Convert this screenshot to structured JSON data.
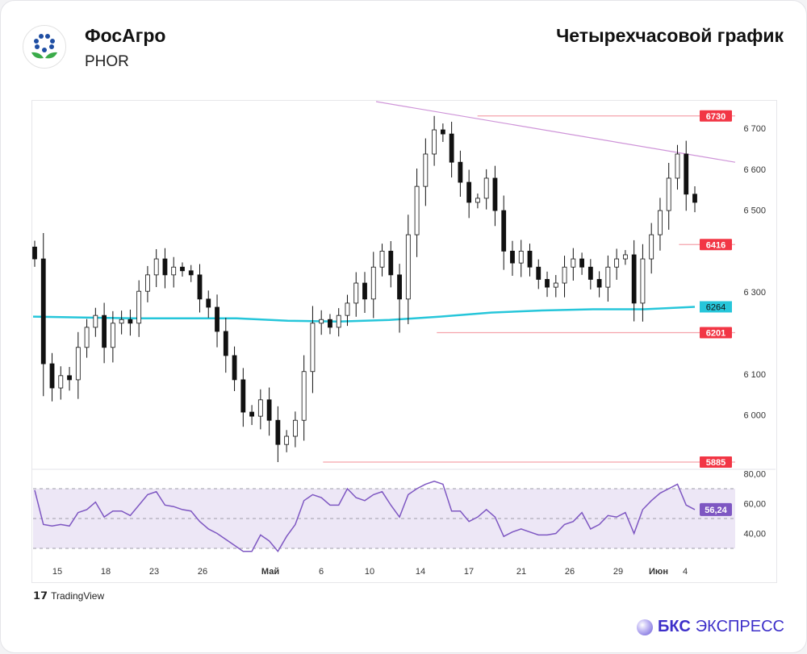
{
  "header": {
    "company": "ФосАгро",
    "ticker": "PHOR",
    "chart_title": "Четырехчасовой график"
  },
  "footer": {
    "tradingview": "TradingView",
    "brand_bold": "БКС",
    "brand_light": "ЭКСПРЕСС"
  },
  "colors": {
    "up": "#ffffff",
    "down": "#111111",
    "sma": "#26c6da",
    "level": "#f23645",
    "trend": "#ce93d8",
    "rsi": "#7e57c2",
    "rsi_band": "#ede7f6"
  },
  "chart_data": {
    "type": "candlestick",
    "title": "Четырехчасовой график",
    "ylim": [
      5850,
      6770
    ],
    "yticks": [
      6000,
      6100,
      6300,
      6500,
      6600,
      6700
    ],
    "ytick_labels": [
      "6 000",
      "6 100",
      "6 300",
      "6 500",
      "6 600",
      "6 700"
    ],
    "xtick_labels": [
      "15",
      "18",
      "23",
      "26",
      "Май",
      "6",
      "10",
      "14",
      "17",
      "21",
      "26",
      "29",
      "Июн",
      "4"
    ],
    "closes": [
      6381,
      6125,
      6066,
      6096,
      6086,
      6165,
      6214,
      6243,
      6165,
      6224,
      6233,
      6224,
      6302,
      6342,
      6381,
      6342,
      6361,
      6352,
      6342,
      6283,
      6263,
      6204,
      6145,
      6086,
      6007,
      5997,
      6037,
      5987,
      5928,
      5948,
      5987,
      6106,
      6224,
      6233,
      6214,
      6243,
      6273,
      6322,
      6283,
      6361,
      6400,
      6342,
      6283,
      6440,
      6558,
      6637,
      6696,
      6686,
      6617,
      6568,
      6519,
      6529,
      6578,
      6499,
      6400,
      6371,
      6400,
      6361,
      6331,
      6312,
      6322,
      6361,
      6381,
      6361,
      6331,
      6312,
      6361,
      6381,
      6391,
      6273,
      6381,
      6440,
      6499,
      6578,
      6637,
      6539,
      6519
    ],
    "first_open": 6410,
    "sma": [
      6240,
      6238,
      6236,
      6236,
      6236,
      6230,
      6228,
      6232,
      6240,
      6250,
      6255,
      6258,
      6258,
      6264
    ],
    "trendline": {
      "from": 6765,
      "to": 6617
    },
    "levels": [
      {
        "value": 6730,
        "label": "6730",
        "start": 0.633
      },
      {
        "value": 6416,
        "label": "6416",
        "start": 0.92
      },
      {
        "value": 6201,
        "label": "6201",
        "start": 0.575
      },
      {
        "value": 5885,
        "label": "5885",
        "start": 0.413
      }
    ],
    "sma_last": {
      "value": 6264,
      "label": "6264"
    },
    "rsi": {
      "ylim": [
        20,
        85
      ],
      "upper": 70,
      "lower": 30,
      "mid": 50,
      "yticks": [
        40,
        60,
        80
      ],
      "ytick_labels": [
        "40,00",
        "60,00",
        "80,00"
      ],
      "last_label": "56,24",
      "values": [
        69,
        46,
        45,
        46,
        45,
        54,
        56,
        61,
        51,
        55,
        55,
        52,
        59,
        66,
        68,
        59,
        58,
        56,
        55,
        48,
        43,
        40,
        36,
        32,
        28,
        28,
        39,
        35,
        28,
        38,
        46,
        62,
        66,
        64,
        59,
        59,
        70,
        64,
        62,
        66,
        68,
        59,
        51,
        66,
        70,
        73,
        75,
        73,
        55,
        55,
        48,
        51,
        56,
        51,
        38,
        41,
        43,
        41,
        39,
        39,
        40,
        46,
        48,
        54,
        43,
        46,
        52,
        51,
        54,
        40,
        56,
        62,
        67,
        70,
        73,
        59,
        56
      ]
    }
  }
}
